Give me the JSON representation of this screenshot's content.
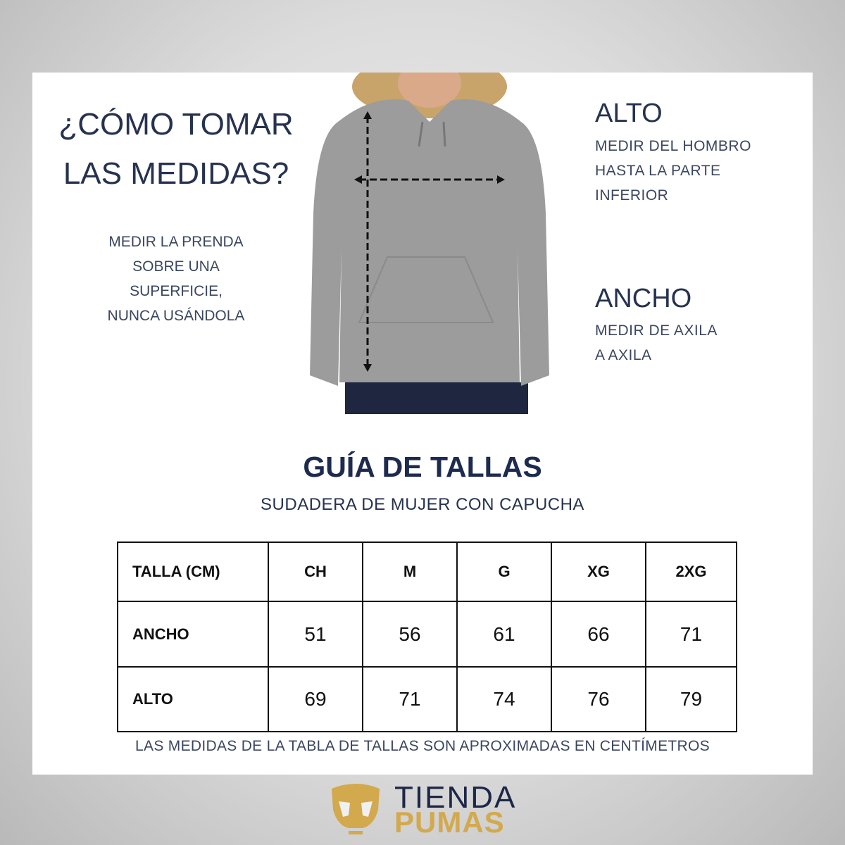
{
  "how_to": {
    "title_line1": "¿CÓMO TOMAR",
    "title_line2": "LAS MEDIDAS?",
    "instructions": [
      "MEDIR LA PRENDA",
      "SOBRE UNA",
      "SUPERFICIE,",
      "NUNCA USÁNDOLA"
    ]
  },
  "alto": {
    "heading": "ALTO",
    "lines": [
      "MEDIR DEL HOMBRO",
      "HASTA LA PARTE",
      "INFERIOR"
    ]
  },
  "ancho": {
    "heading": "ANCHO",
    "lines": [
      "MEDIR DE AXILA",
      "A AXILA"
    ]
  },
  "guide": {
    "title": "GUÍA DE TALLAS",
    "subtitle": "SUDADERA DE MUJER CON CAPUCHA"
  },
  "table": {
    "headers": [
      "TALLA (CM)",
      "CH",
      "M",
      "G",
      "XG",
      "2XG"
    ],
    "rows": [
      {
        "label": "ANCHO",
        "values": [
          "51",
          "56",
          "61",
          "66",
          "71"
        ]
      },
      {
        "label": "ALTO",
        "values": [
          "69",
          "71",
          "74",
          "76",
          "79"
        ]
      }
    ]
  },
  "note": "LAS MEDIDAS DE LA TABLA DE TALLAS SON APROXIMADAS EN CENTÍMETROS",
  "brand": {
    "line1": "TIENDA",
    "line2": "PUMAS",
    "navy": "#1d2747",
    "gold": "#d3a94e"
  }
}
